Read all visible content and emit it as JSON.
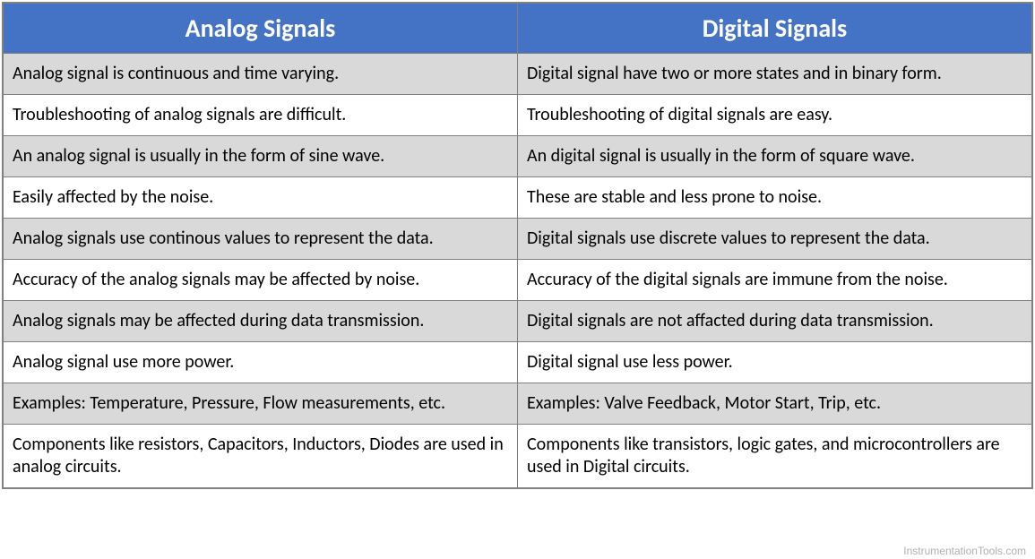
{
  "table": {
    "header_bg": "#4472c4",
    "header_text_color": "#ffffff",
    "header_fontsize": 28,
    "header_fontweight": 700,
    "body_fontsize": 20,
    "body_text_color": "#000000",
    "border_color": "#808080",
    "band_odd_color": "#d9d9d9",
    "band_even_color": "#ffffff",
    "columns": [
      {
        "key": "analog",
        "label": "Analog Signals"
      },
      {
        "key": "digital",
        "label": "Digital Signals"
      }
    ],
    "rows": [
      {
        "analog": "Analog signal is continuous and time varying.",
        "digital": "Digital signal have two or more states and in binary form."
      },
      {
        "analog": "Troubleshooting of analog signals are difficult.",
        "digital": "Troubleshooting of digital signals are easy."
      },
      {
        "analog": "An analog signal is usually in the form of sine wave.",
        "digital": "An digital signal is usually in the form of square wave."
      },
      {
        "analog": "Easily affected by the noise.",
        "digital": "These are stable and less prone to noise."
      },
      {
        "analog": "Analog signals use continous values to represent the data.",
        "digital": "Digital signals use discrete values to represent the data."
      },
      {
        "analog": "Accuracy of the analog signals may be affected by noise.",
        "digital": "Accuracy of the digital signals are immune from the noise."
      },
      {
        "analog": "Analog signals may be affected during data transmission.",
        "digital": "Digital signals are not affacted during data transmission."
      },
      {
        "analog": "Analog signal use more power.",
        "digital": "Digital signal use less power."
      },
      {
        "analog": "Examples: Temperature, Pressure, Flow measurements, etc.",
        "digital": "Examples: Valve Feedback, Motor Start, Trip, etc."
      },
      {
        "analog": "Components like resistors, Capacitors, Inductors, Diodes are used in analog circuits.",
        "digital": "Components like transistors, logic gates, and microcontrollers are used in Digital circuits."
      }
    ]
  },
  "footer": {
    "credit": "InstrumentationTools.com"
  }
}
